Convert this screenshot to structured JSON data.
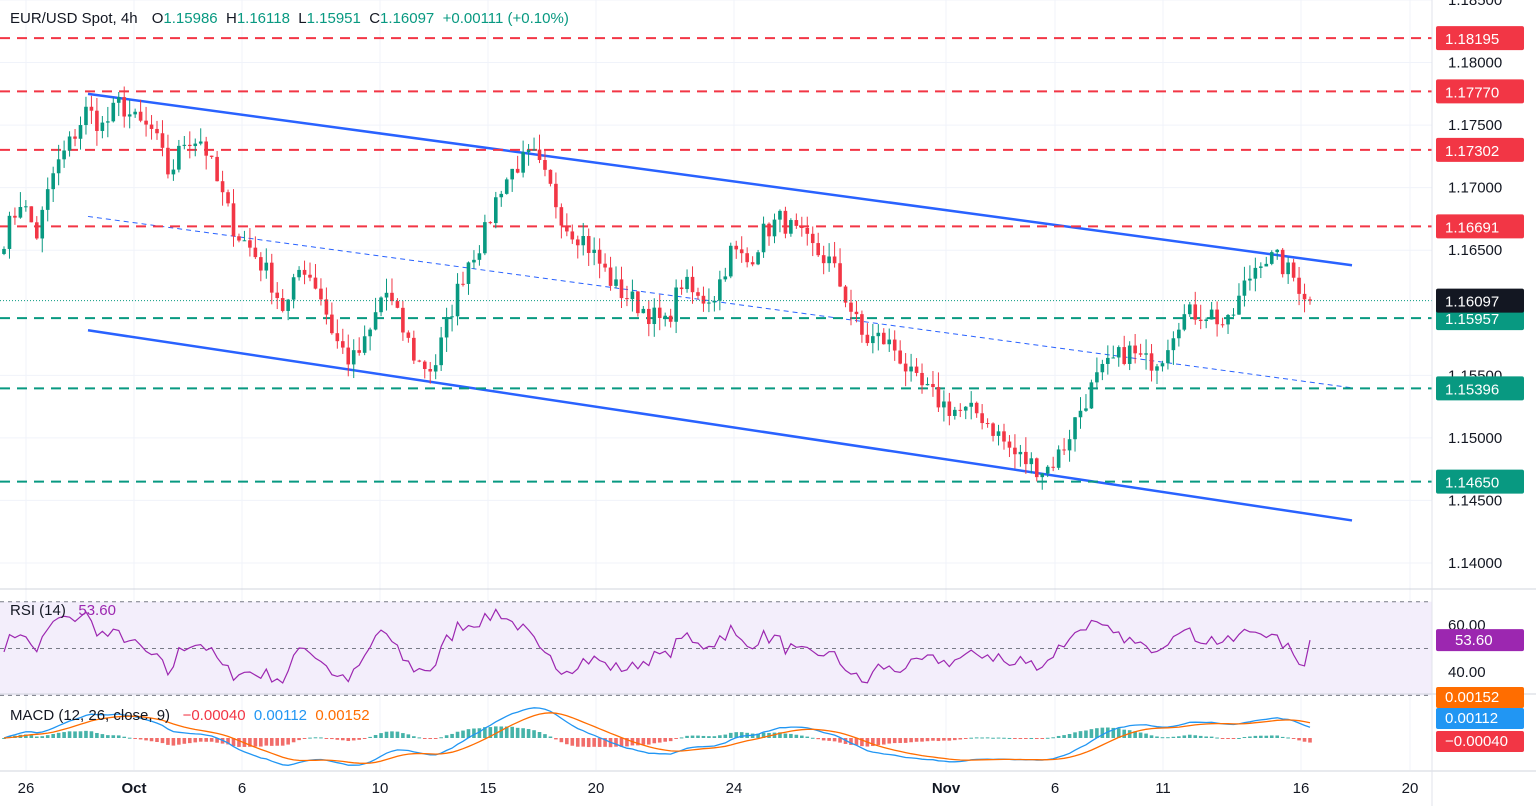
{
  "header": {
    "symbol": "EUR/USD Spot, 4h",
    "o_label": "O",
    "o_value": "1.15986",
    "h_label": "H",
    "h_value": "1.16118",
    "l_label": "L",
    "l_value": "1.15951",
    "c_label": "C",
    "c_value": "1.16097",
    "change": "+0.00111 (+0.10%)"
  },
  "rsi_header": {
    "label": "RSI (14)",
    "value": "53.60"
  },
  "macd_header": {
    "label": "MACD (12, 26, close, 9)",
    "hist": "−0.00040",
    "macd": "0.00112",
    "signal": "0.00152"
  },
  "colors": {
    "up": "#089981",
    "down": "#f23645",
    "trend": "#2962ff",
    "resistance": "#f23645",
    "support": "#089981",
    "rsi": "#9c27b0",
    "macd": "#2196f3",
    "signal": "#ff6d00",
    "price_tag": "#131722"
  },
  "chart_data": [
    {
      "type": "candlestick",
      "title": "EUR/USD Spot, 4h",
      "ylim": [
        1.138,
        1.185
      ],
      "y_ticks": [
        "1.18500",
        "1.18000",
        "1.17500",
        "1.17000",
        "1.16500",
        "1.15500",
        "1.15000",
        "1.14500",
        "1.14000"
      ],
      "x_ticks": [
        "26",
        "Oct",
        "6",
        "10",
        "15",
        "20",
        "24",
        "Nov",
        "6",
        "11",
        "16",
        "20"
      ],
      "resistance_levels": [
        "1.18195",
        "1.17770",
        "1.17302",
        "1.16691"
      ],
      "support_levels": [
        "1.15957",
        "1.15396",
        "1.14650"
      ],
      "last_price": "1.16097",
      "channel": {
        "upper": [
          [
            0,
            1.1775
          ],
          [
            1,
            1.1638
          ]
        ],
        "lower": [
          [
            0,
            1.1586
          ],
          [
            1,
            1.1434
          ]
        ],
        "mid": [
          [
            0,
            1.1677
          ],
          [
            1,
            1.154
          ]
        ]
      },
      "anchors": [
        [
          1.166,
          1.169,
          1.1662,
          1.1712,
          1.1736,
          1.1762,
          1.1748,
          1.1768,
          1.1752,
          1.1745,
          1.171,
          1.174,
          1.1738,
          1.17,
          1.1665,
          1.165,
          1.163,
          1.16,
          1.164,
          1.162,
          1.158,
          1.156,
          1.1578,
          1.162,
          1.159,
          1.156,
          1.1555,
          1.16,
          1.164,
          1.166,
          1.17,
          1.1718,
          1.1725,
          1.17,
          1.167,
          1.166,
          1.164,
          1.162,
          1.161,
          1.16,
          1.159,
          1.1625,
          1.161,
          1.1615,
          1.165,
          1.164,
          1.1665,
          1.1675,
          1.1662,
          1.165,
          1.164,
          1.161,
          1.1578,
          1.158,
          1.157,
          1.1545,
          1.1535,
          1.1525,
          1.152,
          1.152,
          1.1505,
          1.1488,
          1.148,
          1.1474,
          1.149,
          1.152,
          1.1545,
          1.156,
          1.157,
          1.156,
          1.1565,
          1.1595,
          1.16,
          1.16,
          1.1588,
          1.162,
          1.1645,
          1.1642,
          1.1628,
          1.161
        ]
      ],
      "candle_count": 240
    },
    {
      "type": "line",
      "title": "RSI (14)",
      "ylim": [
        31,
        75
      ],
      "y_ticks": [
        "60.00",
        "40.00"
      ],
      "bands": [
        70,
        50,
        30
      ],
      "last_value": "53.60"
    },
    {
      "type": "line",
      "title": "MACD (12, 26, close, 9)",
      "series": [
        {
          "name": "MACD",
          "last": "0.00112"
        },
        {
          "name": "signal",
          "last": "0.00152"
        },
        {
          "name": "histogram",
          "last": "−0.00040"
        }
      ]
    }
  ]
}
